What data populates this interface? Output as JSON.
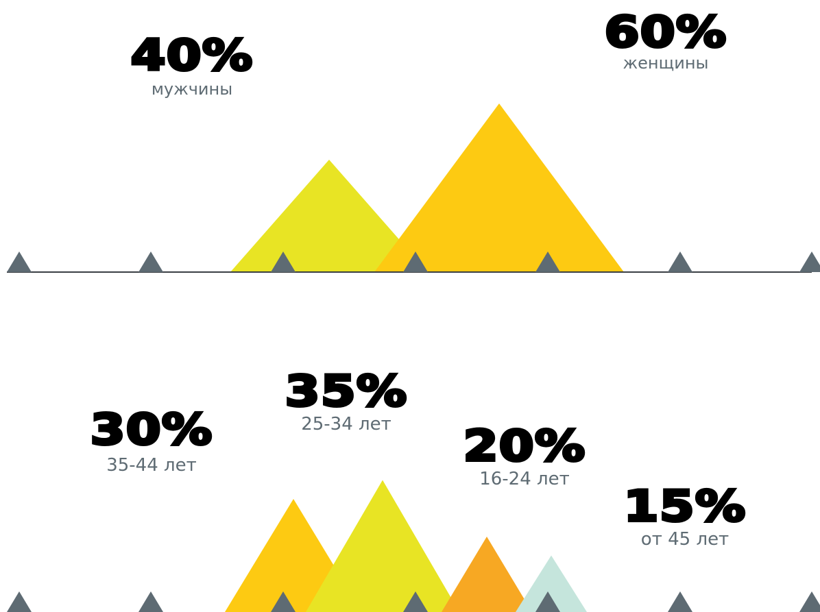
{
  "colors": {
    "marker": "#5e6b73",
    "baseline": "#3a3f44",
    "text_label": "#5e6b73"
  },
  "chart_data": [
    {
      "type": "area",
      "encoding": "triangle peaks; height proportional to percentage",
      "series": [
        {
          "value_label": "40%",
          "value": 40,
          "category": "мужчины",
          "color": "#e8e424"
        },
        {
          "value_label": "60%",
          "value": 60,
          "category": "женщины",
          "color": "#fdca12"
        }
      ]
    },
    {
      "type": "area",
      "encoding": "triangle peaks; height proportional to percentage",
      "series": [
        {
          "value_label": "30%",
          "value": 30,
          "category": "35-44 лет",
          "color": "#fdca12"
        },
        {
          "value_label": "35%",
          "value": 35,
          "category": "25-34 лет",
          "color": "#e8e424"
        },
        {
          "value_label": "20%",
          "value": 20,
          "category": "16-24 лет",
          "color": "#f7a823"
        },
        {
          "value_label": "15%",
          "value": 15,
          "category": "от 45 лет",
          "color": "#c5e5dc"
        }
      ]
    }
  ]
}
